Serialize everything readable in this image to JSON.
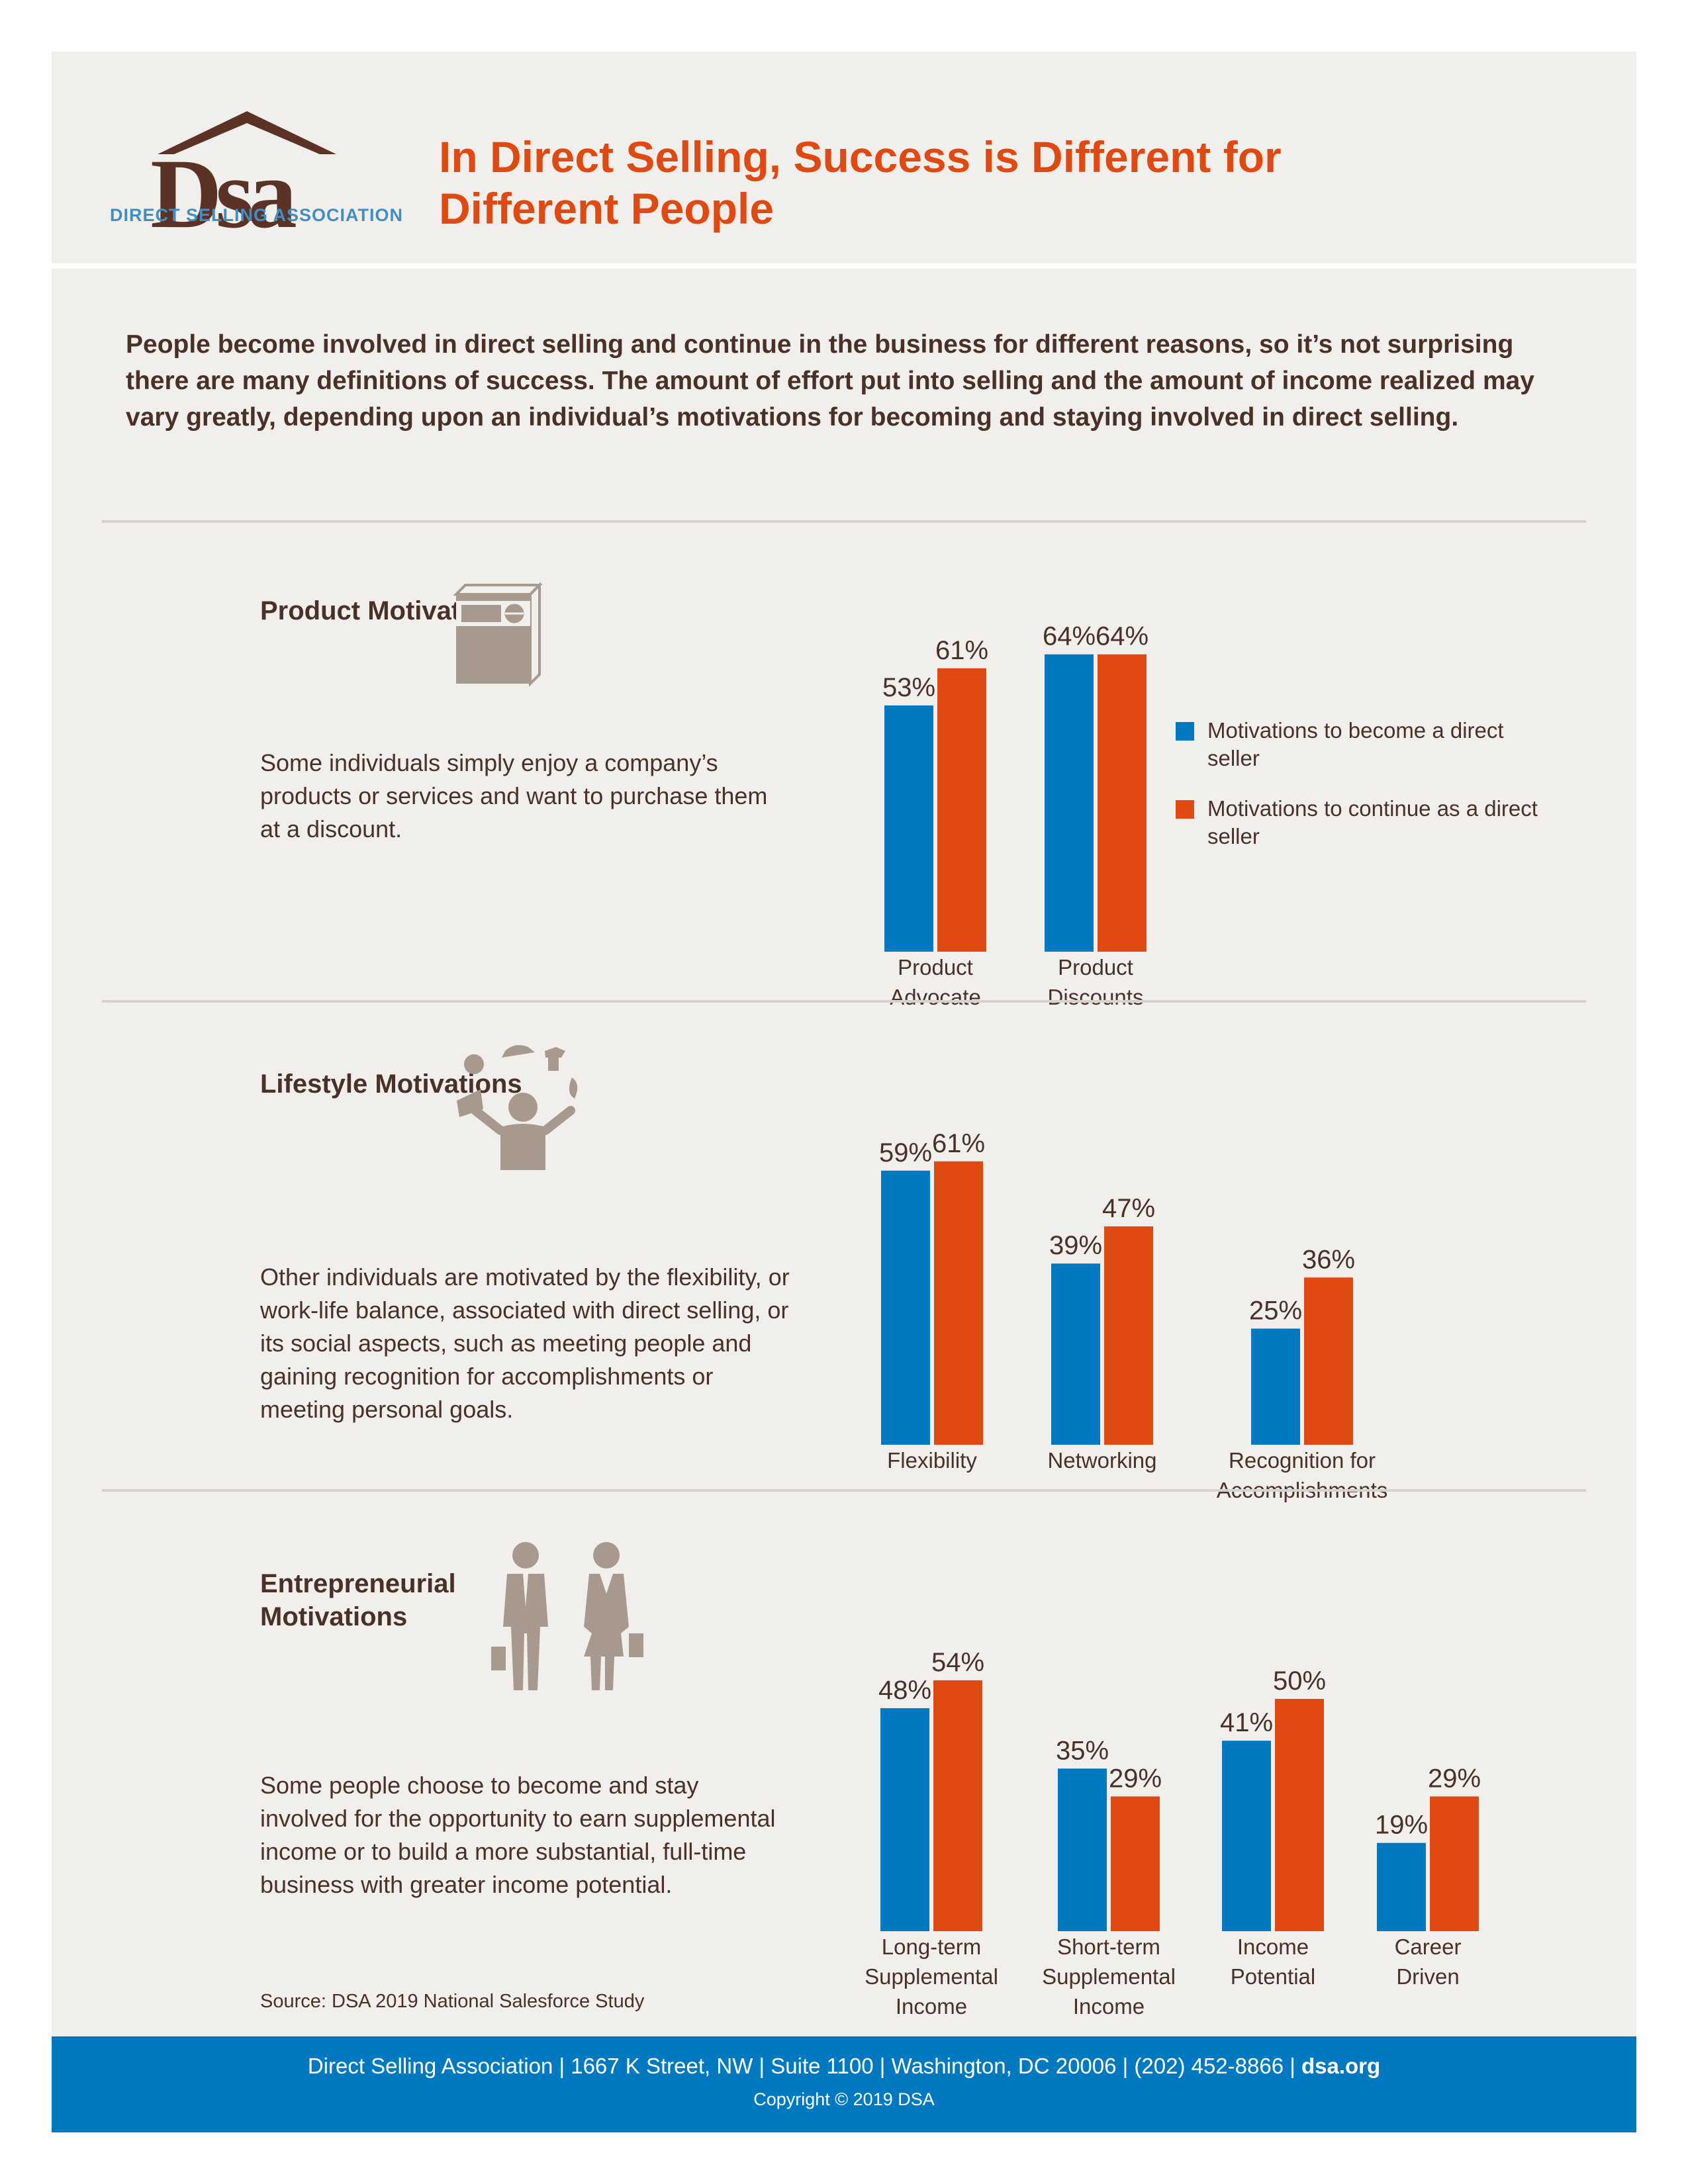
{
  "brand": {
    "logo_text": "Dsa",
    "tagline": "DIRECT SELLING ASSOCIATION"
  },
  "title": "In Direct Selling, Success is Different for Different People",
  "intro": "People become involved in direct selling and continue in the business for different reasons, so it’s not surprising there are many definitions of success. The amount of effort put into selling and the amount of income realized may vary greatly, depending upon an individual’s motivations for becoming and staying involved in direct selling.",
  "colors": {
    "become": "#0079c1",
    "continue": "#e04a12",
    "icon": "#a8998f",
    "text": "#4a3128"
  },
  "sections": [
    {
      "title": "Product Motivations",
      "icon": "product-box-icon",
      "description": "Some individuals simply enjoy a company’s products or services and want to purchase them at a discount."
    },
    {
      "title": "Lifestyle Motivations",
      "icon": "juggling-person-icon",
      "description": "Other individuals are motivated by the flexibility, or work-life balance, associated with direct selling, or its social aspects, such as meeting people and gaining recognition for accomplishments or meeting personal goals."
    },
    {
      "title": "Entrepreneurial Motivations",
      "icon": "businesspeople-icon",
      "description": "Some people choose to become and stay involved for the opportunity to earn supplemental income or to build a more substantial, full-time business with greater income potential."
    }
  ],
  "legend": [
    {
      "label": "Motivations to become a direct seller",
      "color": "#0079c1"
    },
    {
      "label": "Motivations to continue as a direct seller",
      "color": "#e04a12"
    }
  ],
  "chart_data": [
    {
      "type": "bar",
      "categories": [
        [
          "Product",
          "Advocate"
        ],
        [
          "Product",
          "Discounts"
        ]
      ],
      "series": [
        {
          "name": "Motivations to become a direct seller",
          "values": [
            53,
            64
          ]
        },
        {
          "name": "Motivations to continue as a direct seller",
          "values": [
            61,
            64
          ]
        }
      ],
      "value_suffix": "%",
      "legend_position": "right",
      "grid": false
    },
    {
      "type": "bar",
      "categories": [
        [
          "Flexibility"
        ],
        [
          "Networking"
        ],
        [
          "Recognition for",
          "Accomplishments"
        ]
      ],
      "series": [
        {
          "name": "Motivations to become a direct seller",
          "values": [
            59,
            39,
            25
          ]
        },
        {
          "name": "Motivations to continue as a direct seller",
          "values": [
            61,
            47,
            36
          ]
        }
      ],
      "value_suffix": "%",
      "grid": false
    },
    {
      "type": "bar",
      "categories": [
        [
          "Long-term",
          "Supplemental",
          "Income"
        ],
        [
          "Short-term",
          "Supplemental",
          "Income"
        ],
        [
          "Income",
          "Potential"
        ],
        [
          "Career",
          "Driven"
        ]
      ],
      "series": [
        {
          "name": "Motivations to become a direct seller",
          "values": [
            48,
            35,
            41,
            19
          ]
        },
        {
          "name": "Motivations to continue as a direct seller",
          "values": [
            54,
            29,
            50,
            29
          ]
        }
      ],
      "value_suffix": "%",
      "grid": false
    }
  ],
  "source": "Source: DSA 2019 National Salesforce Study",
  "footer": {
    "address": "Direct Selling Association | 1667 K Street, NW | Suite 1100 | Washington, DC 20006 | (202) 452-8866 | ",
    "website": "dsa.org",
    "copyright": "Copyright © 2019 DSA"
  }
}
